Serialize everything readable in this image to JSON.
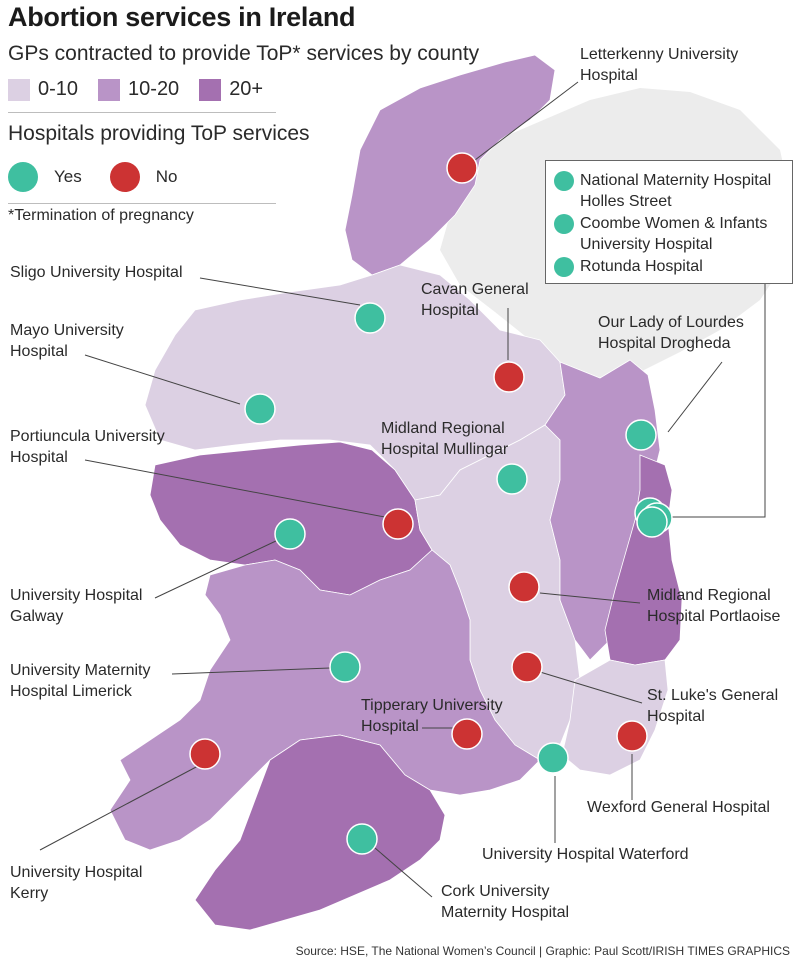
{
  "title": "Abortion services in Ireland",
  "subtitle": "GPs contracted to provide ToP* services by county",
  "gp_legend": [
    {
      "label": "0-10",
      "color": "#dcd0e3"
    },
    {
      "label": "10-20",
      "color": "#b994c7"
    },
    {
      "label": "20+",
      "color": "#a470b0"
    }
  ],
  "hospital_legend": {
    "title": "Hospitals providing ToP services",
    "yes_label": "Yes",
    "no_label": "No",
    "yes_color": "#3fbfa0",
    "no_color": "#cc3333"
  },
  "footnote": "*Termination of pregnancy",
  "dublin_box": [
    {
      "line1": "National Maternity Hospital",
      "line2": "Holles Street"
    },
    {
      "line1": "Coombe Women & Infants",
      "line2": "University Hospital"
    },
    {
      "line1": "Rotunda Hospital",
      "line2": ""
    }
  ],
  "hospitals": [
    {
      "id": "letterkenny",
      "line1": "Letterkenny University",
      "line2": "Hospital",
      "provides": false
    },
    {
      "id": "sligo",
      "line1": "Sligo University Hospital",
      "line2": "",
      "provides": true
    },
    {
      "id": "cavan",
      "line1": "Cavan General",
      "line2": "Hospital",
      "provides": false
    },
    {
      "id": "mayo",
      "line1": "Mayo University",
      "line2": "Hospital",
      "provides": true
    },
    {
      "id": "drogheda",
      "line1": "Our Lady of Lourdes",
      "line2": "Hospital Drogheda",
      "provides": true
    },
    {
      "id": "mullingar",
      "line1": "Midland Regional",
      "line2": "Hospital Mullingar",
      "provides": true
    },
    {
      "id": "portiuncula",
      "line1": "Portiuncula University",
      "line2": "Hospital",
      "provides": false
    },
    {
      "id": "galway",
      "line1": "University Hospital",
      "line2": "Galway",
      "provides": true
    },
    {
      "id": "portlaoise",
      "line1": "Midland Regional",
      "line2": "Hospital Portlaoise",
      "provides": false
    },
    {
      "id": "limerick",
      "line1": "University Maternity",
      "line2": "Hospital Limerick",
      "provides": true
    },
    {
      "id": "stlukes",
      "line1": "St. Luke's General",
      "line2": "Hospital",
      "provides": false
    },
    {
      "id": "tipperary",
      "line1": "Tipperary University",
      "line2": "Hospital",
      "provides": false
    },
    {
      "id": "wexford",
      "line1": "Wexford General Hospital",
      "line2": "",
      "provides": false
    },
    {
      "id": "kerry",
      "line1": "University Hospital",
      "line2": "Kerry",
      "provides": false
    },
    {
      "id": "waterford",
      "line1": "University Hospital Waterford",
      "line2": "",
      "provides": true
    },
    {
      "id": "cork",
      "line1": "Cork University",
      "line2": "Maternity Hospital",
      "provides": true
    }
  ],
  "source": "Source: HSE, The National Women’s Council  |  Graphic: Paul Scott/IRISH TIMES GRAPHICS"
}
